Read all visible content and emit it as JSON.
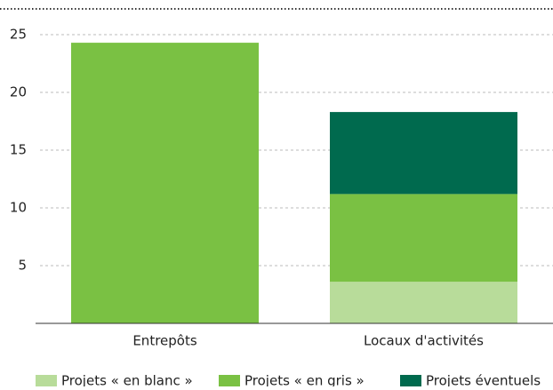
{
  "chart_data": {
    "type": "stacked_bar",
    "categories": [
      "Entrepôts",
      "Locaux d'activités"
    ],
    "series": [
      {
        "name": "Projets « en blanc »",
        "color": "#b8dc9a",
        "values": [
          0,
          3.6
        ]
      },
      {
        "name": "Projets « en gris »",
        "color": "#7ac143",
        "values": [
          24.3,
          7.6
        ]
      },
      {
        "name": "Projets éventuels",
        "color": "#006a4e",
        "values": [
          0,
          7.1
        ]
      }
    ],
    "ylim": [
      0,
      25
    ],
    "yticks": [
      5,
      10,
      15,
      20,
      25
    ],
    "grid": true
  }
}
